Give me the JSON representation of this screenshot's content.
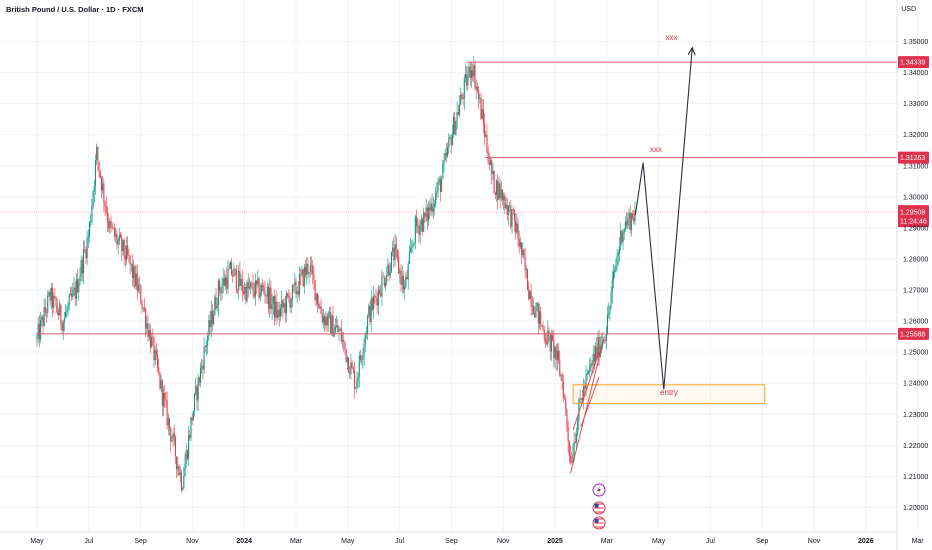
{
  "header": {
    "symbol": "British Pound / U.S. Dollar · 1D · FXCM",
    "currency": "USD"
  },
  "colors": {
    "up": "#089981",
    "down": "#f23645",
    "level_line": "#e05a6b",
    "price_tag": "#e0304b",
    "entry_box": "#f5a623",
    "arrow": "#2a2e39"
  },
  "chart_data": {
    "type": "candlestick",
    "title": "British Pound / U.S. Dollar · 1D · FXCM",
    "ylim": [
      1.195,
      1.355
    ],
    "y_ticks": [
      "1.35000",
      "1.34000",
      "1.33000",
      "1.32000",
      "1.31000",
      "1.30000",
      "1.29000",
      "1.28000",
      "1.27000",
      "1.26000",
      "1.25000",
      "1.24000",
      "1.23000",
      "1.22000",
      "1.21000",
      "1.20000"
    ],
    "x_ticks": [
      "May",
      "Jul",
      "Sep",
      "Nov",
      "2024",
      "Mar",
      "May",
      "Jul",
      "Sep",
      "Nov",
      "2025",
      "Mar",
      "May",
      "Jul",
      "Sep",
      "Nov",
      "2026",
      "Mar"
    ],
    "x_tick_months": [
      0,
      2,
      4,
      6,
      8,
      10,
      12,
      14,
      16,
      18,
      20,
      22,
      24,
      26,
      28,
      30,
      32,
      34
    ],
    "path_anchors": [
      [
        0,
        1.254
      ],
      [
        0.5,
        1.268
      ],
      [
        1,
        1.26
      ],
      [
        1.5,
        1.27
      ],
      [
        2,
        1.288
      ],
      [
        2.3,
        1.314
      ],
      [
        2.8,
        1.29
      ],
      [
        3.5,
        1.28
      ],
      [
        4,
        1.268
      ],
      [
        4.5,
        1.25
      ],
      [
        5,
        1.23
      ],
      [
        5.6,
        1.208
      ],
      [
        6,
        1.23
      ],
      [
        6.5,
        1.252
      ],
      [
        7,
        1.27
      ],
      [
        7.5,
        1.276
      ],
      [
        8,
        1.27
      ],
      [
        8.8,
        1.27
      ],
      [
        9.3,
        1.262
      ],
      [
        10,
        1.27
      ],
      [
        10.5,
        1.278
      ],
      [
        11,
        1.262
      ],
      [
        11.7,
        1.256
      ],
      [
        12,
        1.248
      ],
      [
        12.3,
        1.24
      ],
      [
        12.8,
        1.262
      ],
      [
        13.2,
        1.27
      ],
      [
        13.8,
        1.282
      ],
      [
        14.2,
        1.27
      ],
      [
        14.6,
        1.29
      ],
      [
        15,
        1.293
      ],
      [
        15.6,
        1.305
      ],
      [
        16,
        1.32
      ],
      [
        16.5,
        1.335
      ],
      [
        16.8,
        1.343
      ],
      [
        17.2,
        1.325
      ],
      [
        17.6,
        1.305
      ],
      [
        18,
        1.3
      ],
      [
        18.5,
        1.29
      ],
      [
        19,
        1.27
      ],
      [
        19.5,
        1.258
      ],
      [
        20,
        1.25
      ],
      [
        20.3,
        1.24
      ],
      [
        20.6,
        1.215
      ],
      [
        21,
        1.235
      ],
      [
        21.5,
        1.248
      ],
      [
        22,
        1.258
      ],
      [
        22.3,
        1.276
      ],
      [
        22.6,
        1.29
      ],
      [
        23.1,
        1.2951
      ]
    ],
    "last_month": 23.1,
    "levels": [
      {
        "price": 1.34339,
        "label": "1.34339",
        "from_month": 16.6
      },
      {
        "price": 1.31263,
        "label": "1.31263",
        "from_month": 17.3
      },
      {
        "price": 1.25588,
        "label": "1.25588",
        "from_month": 0
      }
    ],
    "current_price": {
      "label": "1.29508",
      "countdown": "11:24:46",
      "price": 1.29508
    },
    "entry_zone": {
      "from_month": 20.7,
      "to_month": 28.1,
      "top": 1.2395,
      "bottom": 1.2335,
      "label": "entry"
    },
    "channel_lines": [
      [
        [
          20.6,
          1.211
        ],
        [
          21.9,
          1.255
        ]
      ],
      [
        [
          20.7,
          1.225
        ],
        [
          21.7,
          1.25
        ]
      ],
      [
        [
          21.0,
          1.226
        ],
        [
          21.7,
          1.242
        ]
      ]
    ],
    "forecast_path": [
      [
        23.1,
        1.294
      ],
      [
        23.4,
        1.311
      ],
      [
        24.2,
        1.238
      ],
      [
        25.3,
        1.348
      ]
    ],
    "targets": [
      {
        "label": "xxx",
        "month": 23.9,
        "price": 1.3145
      },
      {
        "label": "xxx",
        "month": 24.5,
        "price": 1.3505
      }
    ],
    "event_icons": [
      "lightning-icon",
      "us-flag-icon",
      "us-flag-icon"
    ]
  }
}
